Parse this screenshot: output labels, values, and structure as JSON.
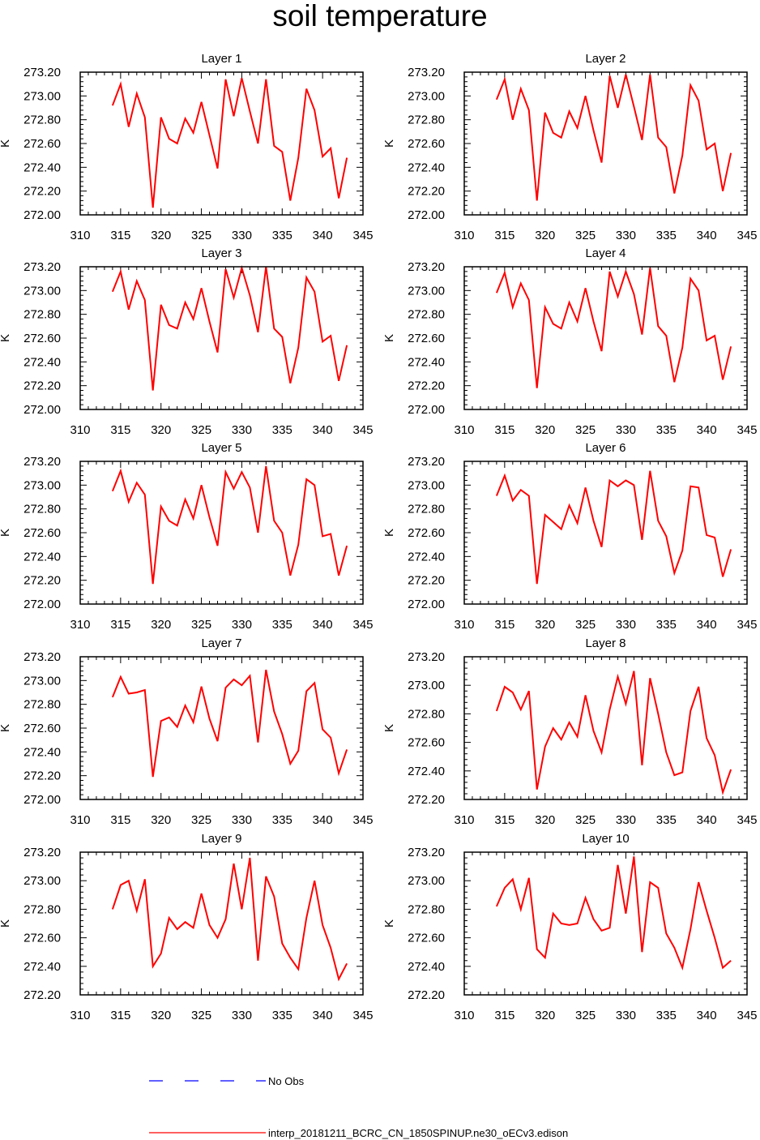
{
  "title": "soil temperature",
  "legend": [
    {
      "label": "No Obs",
      "color": "#0000ff",
      "dashed": true
    },
    {
      "label": "interp_20181211_BCRC_CN_1850SPINUP.ne30_oECv3.edison",
      "color": "#ff0000",
      "dashed": false
    }
  ],
  "chart_data": [
    {
      "type": "line",
      "title": "Layer 1",
      "ylabel": "K",
      "xlim": [
        310,
        345
      ],
      "ylim": [
        272.0,
        273.2
      ],
      "x_ticks": [
        "310",
        "315",
        "320",
        "325",
        "330",
        "335",
        "340",
        "345"
      ],
      "y_ticks": [
        "272.00",
        "272.20",
        "272.40",
        "272.60",
        "272.80",
        "273.00",
        "273.20"
      ],
      "series": [
        {
          "color": "#ff0000",
          "x": [
            314,
            315,
            316,
            317,
            318,
            319,
            320,
            321,
            322,
            323,
            324,
            325,
            326,
            327,
            328,
            329,
            330,
            331,
            332,
            333,
            334,
            335,
            336,
            337,
            338,
            339,
            340,
            341,
            342,
            343
          ],
          "values": [
            272.92,
            273.1,
            272.74,
            273.02,
            272.82,
            272.06,
            272.82,
            272.64,
            272.6,
            272.81,
            272.69,
            272.95,
            272.67,
            272.39,
            273.14,
            272.83,
            273.15,
            272.87,
            272.6,
            273.14,
            272.58,
            272.53,
            272.12,
            272.48,
            273.06,
            272.88,
            272.49,
            272.56,
            272.14,
            272.48
          ]
        }
      ]
    },
    {
      "type": "line",
      "title": "Layer 2",
      "ylabel": "K",
      "xlim": [
        310,
        345
      ],
      "ylim": [
        272.0,
        273.2
      ],
      "x_ticks": [
        "310",
        "315",
        "320",
        "325",
        "330",
        "335",
        "340",
        "345"
      ],
      "y_ticks": [
        "272.00",
        "272.20",
        "272.40",
        "272.60",
        "272.80",
        "273.00",
        "273.20"
      ],
      "series": [
        {
          "color": "#ff0000",
          "x": [
            314,
            315,
            316,
            317,
            318,
            319,
            320,
            321,
            322,
            323,
            324,
            325,
            326,
            327,
            328,
            329,
            330,
            331,
            332,
            333,
            334,
            335,
            336,
            337,
            338,
            339,
            340,
            341,
            342,
            343
          ],
          "values": [
            272.97,
            273.14,
            272.8,
            273.06,
            272.88,
            272.12,
            272.86,
            272.69,
            272.65,
            272.87,
            272.73,
            273.0,
            272.71,
            272.44,
            273.17,
            272.9,
            273.18,
            272.91,
            272.63,
            273.18,
            272.65,
            272.57,
            272.18,
            272.5,
            273.09,
            272.96,
            272.55,
            272.6,
            272.2,
            272.52
          ]
        }
      ]
    },
    {
      "type": "line",
      "title": "Layer 3",
      "ylabel": "K",
      "xlim": [
        310,
        345
      ],
      "ylim": [
        272.0,
        273.2
      ],
      "x_ticks": [
        "310",
        "315",
        "320",
        "325",
        "330",
        "335",
        "340",
        "345"
      ],
      "y_ticks": [
        "272.00",
        "272.20",
        "272.40",
        "272.60",
        "272.80",
        "273.00",
        "273.20"
      ],
      "series": [
        {
          "color": "#ff0000",
          "x": [
            314,
            315,
            316,
            317,
            318,
            319,
            320,
            321,
            322,
            323,
            324,
            325,
            326,
            327,
            328,
            329,
            330,
            331,
            332,
            333,
            334,
            335,
            336,
            337,
            338,
            339,
            340,
            341,
            342,
            343
          ],
          "values": [
            272.99,
            273.16,
            272.84,
            273.08,
            272.92,
            272.16,
            272.88,
            272.71,
            272.68,
            272.9,
            272.76,
            273.02,
            272.74,
            272.48,
            273.18,
            272.94,
            273.19,
            272.96,
            272.65,
            273.2,
            272.68,
            272.61,
            272.22,
            272.52,
            273.11,
            272.99,
            272.57,
            272.62,
            272.24,
            272.54
          ]
        }
      ]
    },
    {
      "type": "line",
      "title": "Layer 4",
      "ylabel": "K",
      "xlim": [
        310,
        345
      ],
      "ylim": [
        272.0,
        273.2
      ],
      "x_ticks": [
        "310",
        "315",
        "320",
        "325",
        "330",
        "335",
        "340",
        "345"
      ],
      "y_ticks": [
        "272.00",
        "272.20",
        "272.40",
        "272.60",
        "272.80",
        "273.00",
        "273.20"
      ],
      "series": [
        {
          "color": "#ff0000",
          "x": [
            314,
            315,
            316,
            317,
            318,
            319,
            320,
            321,
            322,
            323,
            324,
            325,
            326,
            327,
            328,
            329,
            330,
            331,
            332,
            333,
            334,
            335,
            336,
            337,
            338,
            339,
            340,
            341,
            342,
            343
          ],
          "values": [
            272.98,
            273.15,
            272.86,
            273.06,
            272.92,
            272.18,
            272.86,
            272.72,
            272.68,
            272.9,
            272.74,
            273.02,
            272.74,
            272.49,
            273.16,
            272.95,
            273.16,
            272.97,
            272.63,
            273.19,
            272.7,
            272.62,
            272.23,
            272.52,
            273.1,
            273.0,
            272.58,
            272.62,
            272.25,
            272.53
          ]
        }
      ]
    },
    {
      "type": "line",
      "title": "Layer 5",
      "ylabel": "K",
      "xlim": [
        310,
        345
      ],
      "ylim": [
        272.0,
        273.2
      ],
      "x_ticks": [
        "310",
        "315",
        "320",
        "325",
        "330",
        "335",
        "340",
        "345"
      ],
      "y_ticks": [
        "272.00",
        "272.20",
        "272.40",
        "272.60",
        "272.80",
        "273.00",
        "273.20"
      ],
      "series": [
        {
          "color": "#ff0000",
          "x": [
            314,
            315,
            316,
            317,
            318,
            319,
            320,
            321,
            322,
            323,
            324,
            325,
            326,
            327,
            328,
            329,
            330,
            331,
            332,
            333,
            334,
            335,
            336,
            337,
            338,
            339,
            340,
            341,
            342,
            343
          ],
          "values": [
            272.95,
            273.12,
            272.86,
            273.02,
            272.92,
            272.17,
            272.82,
            272.7,
            272.66,
            272.88,
            272.72,
            273.0,
            272.73,
            272.49,
            273.11,
            272.97,
            273.11,
            272.98,
            272.6,
            273.16,
            272.7,
            272.6,
            272.24,
            272.5,
            273.05,
            273.0,
            272.57,
            272.59,
            272.24,
            272.49
          ]
        }
      ]
    },
    {
      "type": "line",
      "title": "Layer 6",
      "ylabel": "K",
      "xlim": [
        310,
        345
      ],
      "ylim": [
        272.0,
        273.2
      ],
      "x_ticks": [
        "310",
        "315",
        "320",
        "325",
        "330",
        "335",
        "340",
        "345"
      ],
      "y_ticks": [
        "272.00",
        "272.20",
        "272.40",
        "272.60",
        "272.80",
        "273.00",
        "273.20"
      ],
      "series": [
        {
          "color": "#ff0000",
          "x": [
            314,
            315,
            316,
            317,
            318,
            319,
            320,
            321,
            322,
            323,
            324,
            325,
            326,
            327,
            328,
            329,
            330,
            331,
            332,
            333,
            334,
            335,
            336,
            337,
            338,
            339,
            340,
            341,
            342,
            343
          ],
          "values": [
            272.91,
            273.08,
            272.87,
            272.96,
            272.91,
            272.17,
            272.75,
            272.69,
            272.63,
            272.83,
            272.68,
            272.98,
            272.7,
            272.48,
            273.04,
            272.99,
            273.04,
            273.0,
            272.54,
            273.12,
            272.7,
            272.57,
            272.26,
            272.45,
            272.99,
            272.98,
            272.58,
            272.56,
            272.23,
            272.46
          ]
        }
      ]
    },
    {
      "type": "line",
      "title": "Layer 7",
      "ylabel": "K",
      "xlim": [
        310,
        345
      ],
      "ylim": [
        272.0,
        273.2
      ],
      "x_ticks": [
        "310",
        "315",
        "320",
        "325",
        "330",
        "335",
        "340",
        "345"
      ],
      "y_ticks": [
        "272.00",
        "272.20",
        "272.40",
        "272.60",
        "272.80",
        "273.00",
        "273.20"
      ],
      "series": [
        {
          "color": "#ff0000",
          "x": [
            314,
            315,
            316,
            317,
            318,
            319,
            320,
            321,
            322,
            323,
            324,
            325,
            326,
            327,
            328,
            329,
            330,
            331,
            332,
            333,
            334,
            335,
            336,
            337,
            338,
            339,
            340,
            341,
            342,
            343
          ],
          "values": [
            272.86,
            273.03,
            272.89,
            272.9,
            272.92,
            272.19,
            272.66,
            272.69,
            272.61,
            272.79,
            272.65,
            272.95,
            272.68,
            272.49,
            272.94,
            273.01,
            272.96,
            273.04,
            272.48,
            273.09,
            272.74,
            272.55,
            272.3,
            272.41,
            272.91,
            272.98,
            272.59,
            272.52,
            272.22,
            272.42
          ]
        }
      ]
    },
    {
      "type": "line",
      "title": "Layer 8",
      "ylabel": "K",
      "xlim": [
        310,
        345
      ],
      "ylim": [
        272.2,
        273.2
      ],
      "x_ticks": [
        "310",
        "315",
        "320",
        "325",
        "330",
        "335",
        "340",
        "345"
      ],
      "y_ticks": [
        "272.20",
        "272.40",
        "272.60",
        "272.80",
        "273.00",
        "273.20"
      ],
      "series": [
        {
          "color": "#ff0000",
          "x": [
            314,
            315,
            316,
            317,
            318,
            319,
            320,
            321,
            322,
            323,
            324,
            325,
            326,
            327,
            328,
            329,
            330,
            331,
            332,
            333,
            334,
            335,
            336,
            337,
            338,
            339,
            340,
            341,
            342,
            343
          ],
          "values": [
            272.82,
            272.99,
            272.95,
            272.83,
            272.96,
            272.27,
            272.57,
            272.7,
            272.62,
            272.74,
            272.64,
            272.93,
            272.68,
            272.53,
            272.83,
            273.06,
            272.87,
            273.1,
            272.44,
            273.05,
            272.8,
            272.53,
            272.37,
            272.39,
            272.82,
            272.99,
            272.63,
            272.51,
            272.25,
            272.41
          ]
        }
      ]
    },
    {
      "type": "line",
      "title": "Layer 9",
      "ylabel": "K",
      "xlim": [
        310,
        345
      ],
      "ylim": [
        272.2,
        273.2
      ],
      "x_ticks": [
        "310",
        "315",
        "320",
        "325",
        "330",
        "335",
        "340",
        "345"
      ],
      "y_ticks": [
        "272.20",
        "272.40",
        "272.60",
        "272.80",
        "273.00",
        "273.20"
      ],
      "series": [
        {
          "color": "#ff0000",
          "x": [
            314,
            315,
            316,
            317,
            318,
            319,
            320,
            321,
            322,
            323,
            324,
            325,
            326,
            327,
            328,
            329,
            330,
            331,
            332,
            333,
            334,
            335,
            336,
            337,
            338,
            339,
            340,
            341,
            342,
            343
          ],
          "values": [
            272.8,
            272.97,
            273.0,
            272.79,
            273.01,
            272.4,
            272.49,
            272.74,
            272.66,
            272.71,
            272.67,
            272.91,
            272.69,
            272.6,
            272.73,
            273.12,
            272.8,
            273.16,
            272.44,
            273.03,
            272.89,
            272.56,
            272.46,
            272.38,
            272.74,
            273.0,
            272.69,
            272.53,
            272.31,
            272.42
          ]
        }
      ]
    },
    {
      "type": "line",
      "title": "Layer 10",
      "ylabel": "K",
      "xlim": [
        310,
        345
      ],
      "ylim": [
        272.2,
        273.2
      ],
      "x_ticks": [
        "310",
        "315",
        "320",
        "325",
        "330",
        "335",
        "340",
        "345"
      ],
      "y_ticks": [
        "272.20",
        "272.40",
        "272.60",
        "272.80",
        "273.00",
        "273.20"
      ],
      "series": [
        {
          "color": "#ff0000",
          "x": [
            314,
            315,
            316,
            317,
            318,
            319,
            320,
            321,
            322,
            323,
            324,
            325,
            326,
            327,
            328,
            329,
            330,
            331,
            332,
            333,
            334,
            335,
            336,
            337,
            338,
            339,
            340,
            341,
            342,
            343
          ],
          "values": [
            272.82,
            272.95,
            273.01,
            272.8,
            273.02,
            272.52,
            272.46,
            272.77,
            272.7,
            272.69,
            272.7,
            272.88,
            272.73,
            272.65,
            272.67,
            273.11,
            272.77,
            273.17,
            272.5,
            272.99,
            272.95,
            272.63,
            272.53,
            272.39,
            272.66,
            272.99,
            272.79,
            272.6,
            272.39,
            272.44
          ]
        }
      ]
    }
  ]
}
